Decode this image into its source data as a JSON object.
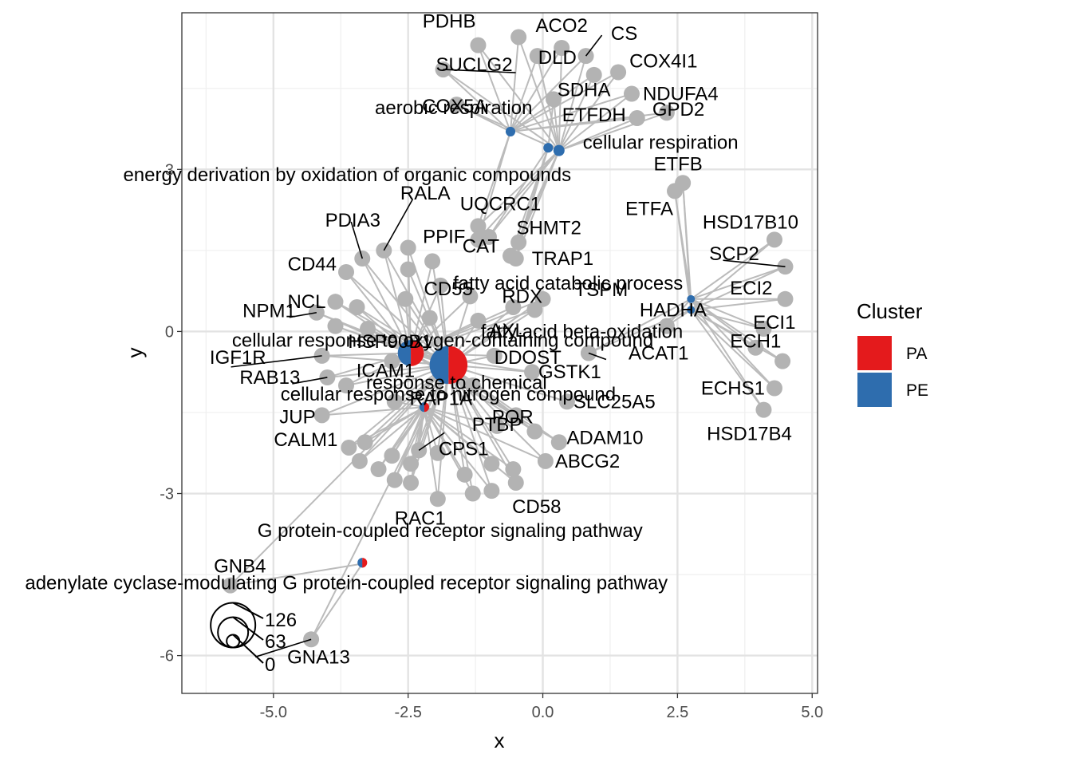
{
  "chart_data": {
    "type": "scatter",
    "xlabel": "x",
    "ylabel": "y",
    "xlim": [
      -6.7,
      5.1
    ],
    "ylim": [
      -6.7,
      5.9
    ],
    "x_ticks": [
      -5.0,
      -2.5,
      0.0,
      2.5,
      5.0
    ],
    "x_tick_labels": [
      "-5.0",
      "-2.5",
      "0.0",
      "2.5",
      "5.0"
    ],
    "y_ticks": [
      -6,
      -3,
      0,
      3
    ],
    "y_tick_labels": [
      "-6",
      "-3",
      "0",
      "3"
    ],
    "grid": true,
    "legend_placement": "right",
    "legend": {
      "title": "Cluster",
      "items": [
        {
          "label": "PA",
          "color": "#E41A1C"
        },
        {
          "label": "PE",
          "color": "#2E6DAE"
        }
      ]
    },
    "size_legend": {
      "labels": [
        "126",
        "63",
        "0"
      ],
      "values": [
        126,
        63,
        0
      ]
    },
    "edge_color": "#bbbbbb",
    "gene_color": "#b3b3b3",
    "terms": [
      {
        "id": "aerobic",
        "label": "aerobic respiration",
        "x": -0.6,
        "y": 3.7,
        "size": 3,
        "pa": 0.0
      },
      {
        "id": "cellresp",
        "label": "cellular respiration",
        "x": 0.3,
        "y": 3.35,
        "size": 4,
        "pa": 0.0
      },
      {
        "id": "energy",
        "label": "energy derivation by oxidation of organic compounds",
        "x": 0.1,
        "y": 3.4,
        "size": 3,
        "pa": 0.0
      },
      {
        "id": "fatcat",
        "label": "fatty acid catabolic process",
        "x": 2.75,
        "y": 0.6,
        "size": 2,
        "pa": 0.0
      },
      {
        "id": "fatbeta",
        "label": "fatty acid beta-oxidation",
        "x": 2.75,
        "y": 0.4,
        "size": 2,
        "pa": 0.0
      },
      {
        "id": "oxy",
        "label": "cellular response to oxygen-containing compound",
        "x": -2.45,
        "y": -0.4,
        "size": 22,
        "pa": 0.5
      },
      {
        "id": "chem",
        "label": "response to chemical",
        "x": -1.75,
        "y": -0.62,
        "size": 46,
        "pa": 0.5
      },
      {
        "id": "nitro",
        "label": "cellular response to nitrogen compound",
        "x": -2.2,
        "y": -1.4,
        "size": 3,
        "pa": 0.5
      },
      {
        "id": "gpcr",
        "label": "G protein-coupled receptor signaling pathway",
        "x": -3.35,
        "y": -4.28,
        "size": 3,
        "pa": 0.5
      },
      {
        "id": "adenyl",
        "label": "adenylate cyclase-modulating G protein-coupled receptor signaling pathway",
        "x": -3.35,
        "y": -4.3,
        "size": 2,
        "pa": 0.5
      }
    ],
    "genes": [
      {
        "label": "PDHB",
        "x": -1.2,
        "y": 5.3
      },
      {
        "label": "",
        "x": -0.45,
        "y": 5.45
      },
      {
        "label": "ACO2",
        "x": 0.35,
        "y": 5.25
      },
      {
        "label": "CS",
        "x": 0.8,
        "y": 5.1
      },
      {
        "label": "SUCLG2",
        "x": -1.85,
        "y": 4.85
      },
      {
        "label": "DLD",
        "x": -0.1,
        "y": 5.1
      },
      {
        "label": "",
        "x": 0.95,
        "y": 4.75
      },
      {
        "label": "COX4I1",
        "x": 1.4,
        "y": 4.8
      },
      {
        "label": "COX5A",
        "x": -1.6,
        "y": 4.2
      },
      {
        "label": "SDHA",
        "x": 0.2,
        "y": 4.3
      },
      {
        "label": "NDUFA4",
        "x": 1.65,
        "y": 4.4
      },
      {
        "label": "ETFDH",
        "x": 1.75,
        "y": 3.95
      },
      {
        "label": "GPD2",
        "x": 2.3,
        "y": 4.05
      },
      {
        "label": "ETFB",
        "x": 2.6,
        "y": 2.75
      },
      {
        "label": "ETFA",
        "x": 2.45,
        "y": 2.6
      },
      {
        "label": "UQCRC1",
        "x": -1.2,
        "y": 1.95
      },
      {
        "label": "",
        "x": -1.0,
        "y": 1.75
      },
      {
        "label": "SHMT2",
        "x": -0.45,
        "y": 1.65
      },
      {
        "label": "PPIF",
        "x": -1.2,
        "y": 1.7
      },
      {
        "label": "CAT",
        "x": -0.6,
        "y": 1.4
      },
      {
        "label": "TRAP1",
        "x": -0.5,
        "y": 1.35
      },
      {
        "label": "RALA",
        "x": -2.95,
        "y": 1.5
      },
      {
        "label": "PDIA3",
        "x": -3.35,
        "y": 1.35
      },
      {
        "label": "",
        "x": -2.5,
        "y": 1.55
      },
      {
        "label": "",
        "x": -2.5,
        "y": 1.15
      },
      {
        "label": "",
        "x": -2.05,
        "y": 1.3
      },
      {
        "label": "CD44",
        "x": -3.65,
        "y": 1.1
      },
      {
        "label": "CD55",
        "x": -1.9,
        "y": 0.85
      },
      {
        "label": "RDX",
        "x": -1.35,
        "y": 0.65
      },
      {
        "label": "",
        "x": -2.55,
        "y": 0.6
      },
      {
        "label": "TSPM",
        "x": 0.0,
        "y": 0.6
      },
      {
        "label": "NCL",
        "x": -3.85,
        "y": 0.55
      },
      {
        "label": "NPM1",
        "x": -4.2,
        "y": 0.35
      },
      {
        "label": "",
        "x": -3.45,
        "y": 0.45
      },
      {
        "label": "",
        "x": -0.55,
        "y": 0.45
      },
      {
        "label": "",
        "x": -0.15,
        "y": 0.4
      },
      {
        "label": "AXL",
        "x": -1.2,
        "y": 0.2
      },
      {
        "label": "",
        "x": -2.1,
        "y": 0.25
      },
      {
        "label": "",
        "x": -3.85,
        "y": 0.1
      },
      {
        "label": "HSP90B1",
        "x": -3.25,
        "y": 0.05
      },
      {
        "label": "IGF1R",
        "x": -4.1,
        "y": -0.45
      },
      {
        "label": "DDOST",
        "x": -0.9,
        "y": -0.45
      },
      {
        "label": "ACAT1",
        "x": 0.85,
        "y": -0.4
      },
      {
        "label": "GSTK1",
        "x": -0.2,
        "y": -0.75
      },
      {
        "label": "ICAM1",
        "x": -2.8,
        "y": -0.55
      },
      {
        "label": "RAB13",
        "x": -4.0,
        "y": -0.85
      },
      {
        "label": "",
        "x": -3.65,
        "y": -1.0
      },
      {
        "label": "",
        "x": -1.3,
        "y": -1.0
      },
      {
        "label": "RAP1A",
        "x": -2.75,
        "y": -1.3
      },
      {
        "label": "SLC25A5",
        "x": 0.45,
        "y": -1.3
      },
      {
        "label": "POR",
        "x": -0.5,
        "y": -1.55
      },
      {
        "label": "JUP",
        "x": -4.1,
        "y": -1.55
      },
      {
        "label": "ADAM10",
        "x": -0.15,
        "y": -1.85
      },
      {
        "label": "PTBP",
        "x": -0.85,
        "y": -1.75
      },
      {
        "label": "",
        "x": 0.3,
        "y": -2.05
      },
      {
        "label": "CALM1",
        "x": -3.6,
        "y": -2.15
      },
      {
        "label": "",
        "x": -3.3,
        "y": -2.05
      },
      {
        "label": "",
        "x": -2.8,
        "y": -2.3
      },
      {
        "label": "",
        "x": -3.4,
        "y": -2.4
      },
      {
        "label": "",
        "x": -3.05,
        "y": -2.55
      },
      {
        "label": "",
        "x": -2.45,
        "y": -2.45
      },
      {
        "label": "CPS1",
        "x": -2.3,
        "y": -2.2
      },
      {
        "label": "",
        "x": -1.95,
        "y": -2.25
      },
      {
        "label": "ABCG2",
        "x": 0.05,
        "y": -2.4
      },
      {
        "label": "",
        "x": -0.95,
        "y": -2.45
      },
      {
        "label": "",
        "x": -0.55,
        "y": -2.55
      },
      {
        "label": "",
        "x": -2.75,
        "y": -2.75
      },
      {
        "label": "",
        "x": -2.45,
        "y": -2.8
      },
      {
        "label": "",
        "x": -1.45,
        "y": -2.65
      },
      {
        "label": "CD58",
        "x": -0.5,
        "y": -2.8
      },
      {
        "label": "",
        "x": -0.95,
        "y": -2.95
      },
      {
        "label": "",
        "x": -1.3,
        "y": -3.0
      },
      {
        "label": "RAC1",
        "x": -1.95,
        "y": -3.1
      },
      {
        "label": "GNB4",
        "x": -5.8,
        "y": -4.7
      },
      {
        "label": "GNA13",
        "x": -4.3,
        "y": -5.7
      },
      {
        "label": "HSD17B10",
        "x": 4.3,
        "y": 1.7
      },
      {
        "label": "SCP2",
        "x": 4.5,
        "y": 1.2
      },
      {
        "label": "ECI2",
        "x": 4.5,
        "y": 0.6
      },
      {
        "label": "HADHA",
        "x": 2.3,
        "y": 0.1
      },
      {
        "label": "ECI1",
        "x": 4.1,
        "y": 0.05
      },
      {
        "label": "ECH1",
        "x": 3.95,
        "y": -0.3
      },
      {
        "label": "",
        "x": 4.45,
        "y": -0.55
      },
      {
        "label": "ECHS1",
        "x": 4.3,
        "y": -1.05
      },
      {
        "label": "HSD17B4",
        "x": 4.1,
        "y": -1.45
      }
    ]
  }
}
